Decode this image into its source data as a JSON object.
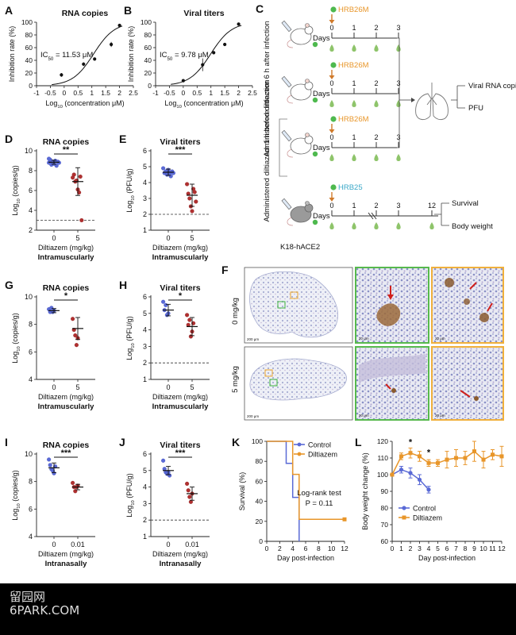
{
  "panels": {
    "A": {
      "letter": "A",
      "title": "RNA copies",
      "ylabel": "Inhibition rate (%)",
      "xlabel": "Log10 (concentration μM)",
      "ic50": "IC50 = 11.53 μM",
      "xticks": [
        "-1",
        "-0.5",
        "0",
        "0.5",
        "1",
        "1.5",
        "2",
        "2.5"
      ],
      "yticks": [
        "0",
        "20",
        "40",
        "60",
        "80",
        "100"
      ]
    },
    "B": {
      "letter": "B",
      "title": "Viral titers",
      "ylabel": "Inhibition rate (%)",
      "xlabel": "Log10 (concentration μM)",
      "ic50": "IC50 = 9.78 μM",
      "xticks": [
        "-1",
        "-0.5",
        "0",
        "0.5",
        "1",
        "1.5",
        "2",
        "2.5"
      ],
      "yticks": [
        "0",
        "20",
        "40",
        "60",
        "80",
        "100"
      ]
    },
    "C": {
      "letter": "C",
      "group1_label": "Administered diltiazem 6 h after infection",
      "group2_label": "Administered diltiazem 1 h before infection",
      "strain1": "HRB26M",
      "strain2": "HRB26M",
      "strain3": "HRB26M",
      "strain4": "HRB25",
      "days_label": "Days",
      "day_ticks": [
        "0",
        "1",
        "2",
        "3"
      ],
      "day_ticks_long": [
        "0",
        "1",
        "2",
        "3",
        "12"
      ],
      "readout1": "Viral RNA copies",
      "readout2": "PFU",
      "readout3": "Survival",
      "readout4": "Body weight",
      "mouse_label": "K18-hACE2"
    },
    "D": {
      "letter": "D",
      "title": "RNA copies",
      "ylabel": "Log10 (copies/g)",
      "xlabel": "Diltiazem (mg/kg)",
      "route": "Intramuscularly",
      "categories": [
        "0",
        "5"
      ],
      "sig": "**",
      "yticks": [
        "2",
        "4",
        "6",
        "8",
        "10"
      ]
    },
    "E": {
      "letter": "E",
      "title": "Viral titers",
      "ylabel": "Log10 (PFU/g)",
      "xlabel": "Diltiazem (mg/kg)",
      "route": "Intramuscularly",
      "categories": [
        "0",
        "5"
      ],
      "sig": "***",
      "yticks": [
        "1",
        "2",
        "3",
        "4",
        "5",
        "6"
      ]
    },
    "G": {
      "letter": "G",
      "title": "RNA copies",
      "ylabel": "Log10 (copies/g)",
      "xlabel": "Diltiazem (mg/kg)",
      "route": "Intramuscularly",
      "categories": [
        "0",
        "5"
      ],
      "sig": "*",
      "yticks": [
        "4",
        "6",
        "8",
        "10"
      ]
    },
    "H": {
      "letter": "H",
      "title": "Viral titers",
      "ylabel": "Log10 (PFU/g)",
      "xlabel": "Diltiazem (mg/kg)",
      "route": "Intramuscularly",
      "categories": [
        "0",
        "5"
      ],
      "sig": "*",
      "yticks": [
        "1",
        "2",
        "3",
        "4",
        "5",
        "6"
      ]
    },
    "F": {
      "letter": "F",
      "row1": "0 mg/kg",
      "row2": "5 mg/kg",
      "scale_a": "200 μm",
      "scale_b": "20 μm"
    },
    "I": {
      "letter": "I",
      "title": "RNA copies",
      "ylabel": "Log10 (copies/g)",
      "xlabel": "Diltiazem (mg/kg)",
      "route": "Intranasally",
      "categories": [
        "0",
        "0.01"
      ],
      "sig": "***",
      "yticks": [
        "4",
        "6",
        "8",
        "10"
      ]
    },
    "J": {
      "letter": "J",
      "title": "Viral titers",
      "ylabel": "Log10 (PFU/g)",
      "xlabel": "Diltiazem (mg/kg)",
      "route": "Intranasally",
      "categories": [
        "0",
        "0.01"
      ],
      "sig": "***",
      "yticks": [
        "1",
        "2",
        "3",
        "4",
        "5",
        "6"
      ]
    },
    "K": {
      "letter": "K",
      "ylabel": "Survival (%)",
      "xlabel": "Day post-infection",
      "legend": [
        "Control",
        "Diltiazem"
      ],
      "test": "Log-rank test",
      "pvalue": "P = 0.11",
      "xticks": [
        "0",
        "2",
        "4",
        "6",
        "8",
        "10",
        "12"
      ],
      "yticks": [
        "0",
        "20",
        "40",
        "60",
        "80",
        "100"
      ]
    },
    "L": {
      "letter": "L",
      "ylabel": "Body weight change (%)",
      "xlabel": "Day post-infection",
      "legend": [
        "Control",
        "Diltiazem"
      ],
      "sig": "*",
      "xticks": [
        "0",
        "1",
        "2",
        "3",
        "4",
        "5",
        "6",
        "7",
        "8",
        "9",
        "10",
        "11",
        "12"
      ],
      "yticks": [
        "60",
        "70",
        "80",
        "90",
        "100",
        "110",
        "120"
      ]
    }
  },
  "watermark": {
    "line1": "留园网",
    "line2": "6PARK.COM"
  },
  "colors": {
    "blue": "#5a6ad6",
    "red": "#b03030",
    "orange": "#e8962a",
    "dark": "#222222",
    "border_green": "#57b94d",
    "border_orange": "#f0b03c"
  },
  "chart_data": [
    {
      "id": "A",
      "type": "scatter",
      "title": "RNA copies",
      "xlabel": "Log10 (concentration μM)",
      "ylabel": "Inhibition rate (%)",
      "xlim": [
        -1,
        2.5
      ],
      "ylim": [
        0,
        100
      ],
      "points": [
        {
          "x": -0.1,
          "y": 17,
          "err": 3
        },
        {
          "x": 0.7,
          "y": 34,
          "err": 3
        },
        {
          "x": 1.1,
          "y": 42,
          "err": 2
        },
        {
          "x": 1.7,
          "y": 65,
          "err": 4
        },
        {
          "x": 2.0,
          "y": 95,
          "err": 2
        }
      ],
      "fit": "sigmoid",
      "ic50": 11.53
    },
    {
      "id": "B",
      "type": "scatter",
      "title": "Viral titers",
      "xlabel": "Log10 (concentration μM)",
      "ylabel": "Inhibition rate (%)",
      "xlim": [
        -1,
        2.5
      ],
      "ylim": [
        0,
        100
      ],
      "points": [
        {
          "x": 0.0,
          "y": 8,
          "err": 2
        },
        {
          "x": 0.7,
          "y": 33,
          "err": 10
        },
        {
          "x": 1.1,
          "y": 52,
          "err": 2
        },
        {
          "x": 1.5,
          "y": 65,
          "err": 2
        },
        {
          "x": 2.0,
          "y": 97,
          "err": 2
        }
      ],
      "fit": "sigmoid",
      "ic50": 9.78
    },
    {
      "id": "D",
      "type": "scatter",
      "ylim": [
        2,
        10
      ],
      "threshold": 3,
      "groups": [
        {
          "name": "0",
          "values": [
            8.8,
            9.1,
            8.6,
            8.9,
            8.7,
            9.0,
            8.5,
            8.9,
            8.8,
            9.2
          ],
          "mean": 8.85,
          "sd": 0.2
        },
        {
          "name": "5",
          "values": [
            7.3,
            7.6,
            6.9,
            7.0,
            6.1,
            5.8,
            7.4,
            3.0
          ],
          "mean": 6.9,
          "sd": 1.4
        }
      ]
    },
    {
      "id": "E",
      "type": "scatter",
      "ylim": [
        1,
        6
      ],
      "threshold": 2,
      "groups": [
        {
          "name": "0",
          "values": [
            4.9,
            4.6,
            4.7,
            4.5,
            4.8,
            4.6,
            4.4,
            4.7,
            4.6
          ],
          "mean": 4.65,
          "sd": 0.2
        },
        {
          "name": "5",
          "values": [
            3.9,
            3.3,
            3.0,
            2.5,
            2.2,
            3.6,
            3.4,
            2.8
          ],
          "mean": 3.2,
          "sd": 0.7
        }
      ]
    },
    {
      "id": "G",
      "type": "scatter",
      "ylim": [
        4,
        10
      ],
      "groups": [
        {
          "name": "0",
          "values": [
            9.1,
            8.9,
            9.2,
            8.9,
            9.0
          ],
          "mean": 9.0,
          "sd": 0.15
        },
        {
          "name": "5",
          "values": [
            8.4,
            7.6,
            7.2,
            6.5,
            7.0
          ],
          "mean": 7.7,
          "sd": 0.8
        }
      ]
    },
    {
      "id": "H",
      "type": "scatter",
      "ylim": [
        1,
        6
      ],
      "threshold": 2,
      "groups": [
        {
          "name": "0",
          "values": [
            5.7,
            5.2,
            5.5,
            4.9,
            5.0
          ],
          "mean": 5.2,
          "sd": 0.35
        },
        {
          "name": "5",
          "values": [
            4.9,
            4.3,
            4.6,
            3.6,
            3.9,
            4.4
          ],
          "mean": 4.2,
          "sd": 0.55
        }
      ]
    },
    {
      "id": "I",
      "type": "scatter",
      "ylim": [
        4,
        10
      ],
      "groups": [
        {
          "name": "0",
          "values": [
            9.6,
            9.2,
            8.9,
            8.8,
            8.6,
            9.1
          ],
          "mean": 9.0,
          "sd": 0.35
        },
        {
          "name": "0.01",
          "values": [
            7.9,
            7.6,
            7.3,
            7.6,
            7.7
          ],
          "mean": 7.6,
          "sd": 0.2
        }
      ]
    },
    {
      "id": "J",
      "type": "scatter",
      "ylim": [
        1,
        6
      ],
      "threshold": 2,
      "groups": [
        {
          "name": "0",
          "values": [
            5.6,
            5.1,
            4.9,
            4.8,
            4.9,
            4.7
          ],
          "mean": 5.0,
          "sd": 0.25
        },
        {
          "name": "0.01",
          "values": [
            4.2,
            3.8,
            3.4,
            3.1,
            3.6
          ],
          "mean": 3.6,
          "sd": 0.4
        }
      ]
    },
    {
      "id": "K",
      "type": "line",
      "xlabel": "Day post-infection",
      "ylabel": "Survival (%)",
      "xlim": [
        0,
        12
      ],
      "ylim": [
        0,
        100
      ],
      "series": [
        {
          "name": "Control",
          "steps": [
            [
              0,
              100
            ],
            [
              3,
              100
            ],
            [
              3,
              78
            ],
            [
              4,
              78
            ],
            [
              4,
              44
            ],
            [
              5,
              44
            ],
            [
              5,
              0
            ]
          ]
        },
        {
          "name": "Diltiazem",
          "steps": [
            [
              0,
              100
            ],
            [
              4,
              100
            ],
            [
              4,
              67
            ],
            [
              5,
              67
            ],
            [
              5,
              22
            ],
            [
              12,
              22
            ]
          ]
        }
      ]
    },
    {
      "id": "L",
      "type": "line",
      "xlabel": "Day post-infection",
      "ylabel": "Body weight change (%)",
      "xlim": [
        0,
        12
      ],
      "ylim": [
        60,
        120
      ],
      "series": [
        {
          "name": "Control",
          "x": [
            0,
            1,
            2,
            3,
            4
          ],
          "y": [
            100,
            103,
            101,
            97,
            91
          ],
          "err": [
            0,
            2,
            3,
            3,
            2
          ]
        },
        {
          "name": "Diltiazem",
          "x": [
            0,
            1,
            2,
            3,
            4,
            5,
            6,
            7,
            8,
            9,
            10,
            11,
            12
          ],
          "y": [
            100,
            111,
            113,
            111,
            107,
            107,
            109,
            110,
            110,
            114,
            109,
            112,
            111
          ],
          "err": [
            0,
            2,
            3,
            3,
            2,
            2,
            5,
            5,
            4,
            6,
            5,
            3,
            6
          ]
        }
      ]
    }
  ]
}
